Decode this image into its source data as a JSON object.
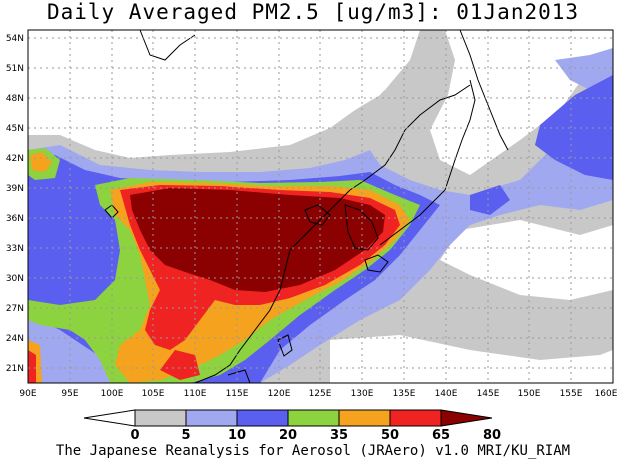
{
  "title": "Daily Averaged PM2.5 [ug/m3]: 01Jan2013",
  "footer": "The Japanese Reanalysis for Aerosol (JRAero) v1.0 MRI/KU_RIAM",
  "lat_labels": [
    "54N",
    "51N",
    "48N",
    "45N",
    "42N",
    "39N",
    "36N",
    "33N",
    "30N",
    "27N",
    "24N",
    "21N"
  ],
  "lon_labels": [
    "90E",
    "95E",
    "100E",
    "105E",
    "110E",
    "115E",
    "120E",
    "125E",
    "130E",
    "135E",
    "140E",
    "145E",
    "150E",
    "155E",
    "160E"
  ],
  "colorbar": {
    "tick_labels": [
      "0",
      "5",
      "10",
      "20",
      "35",
      "50",
      "65",
      "80"
    ],
    "colors": [
      "#ffffff",
      "#c8c8c8",
      "#a0a8f0",
      "#5a5ff0",
      "#8dd23f",
      "#f5a21e",
      "#f02323",
      "#8b0000"
    ]
  },
  "colors": {
    "land_outline": "#000000",
    "grid": "#9a9a9a",
    "white": "#ffffff",
    "gray": "#c8c8c8",
    "lightblue": "#a0a8f0",
    "blue": "#5a5ff0",
    "green": "#8dd23f",
    "orange": "#f5a21e",
    "red": "#f02323",
    "darkred": "#8b0000"
  }
}
